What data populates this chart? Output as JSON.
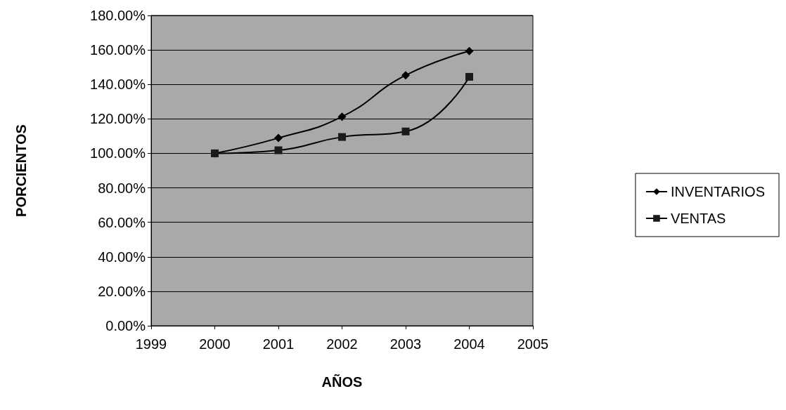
{
  "chart_data": {
    "type": "line",
    "xlabel": "AÑOS",
    "ylabel": "PORCIENTOS",
    "x": [
      2000,
      2001,
      2002,
      2003,
      2004
    ],
    "series": [
      {
        "name": "INVENTARIOS",
        "color": "#000000",
        "marker": "diamond",
        "values": [
          100,
          108.9,
          121.3,
          145.3,
          159.3
        ]
      },
      {
        "name": "VENTAS",
        "color": "#1a1a1a",
        "marker": "square",
        "values": [
          100,
          101.8,
          109.5,
          112.7,
          144.4
        ]
      }
    ],
    "xlim": [
      1999,
      2005
    ],
    "xticks": [
      1999,
      2000,
      2001,
      2002,
      2003,
      2004,
      2005
    ],
    "ylim": [
      0,
      180
    ],
    "yticks": [
      {
        "value": 0,
        "label": "0.00%"
      },
      {
        "value": 20,
        "label": "20.00%"
      },
      {
        "value": 40,
        "label": "40.00%"
      },
      {
        "value": 60,
        "label": "60.00%"
      },
      {
        "value": 80,
        "label": "80.00%"
      },
      {
        "value": 100,
        "label": "100.00%"
      },
      {
        "value": 120,
        "label": "120.00%"
      },
      {
        "value": 140,
        "label": "140.00%"
      },
      {
        "value": 160,
        "label": "160.00%"
      },
      {
        "value": 180,
        "label": "180.00%"
      }
    ],
    "grid": "y",
    "legend": "right"
  }
}
